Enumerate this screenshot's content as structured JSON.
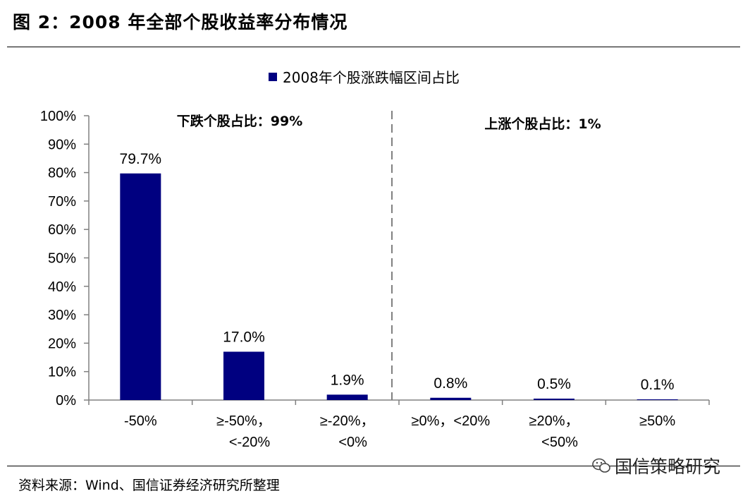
{
  "figure": {
    "title": "图 2：2008 年全部个股收益率分布情况",
    "source": "资料来源：Wind、国信证券经济研究所整理",
    "brand": "国信策略研究",
    "brand_icon": "wechat-icon"
  },
  "chart_data": {
    "type": "bar",
    "categories": [
      [
        "-50%"
      ],
      [
        "≥-50%，",
        "<-20%"
      ],
      [
        "≥-20%，",
        "<0%"
      ],
      [
        "≥0%，<20%"
      ],
      [
        "≥20%，",
        "<50%"
      ],
      [
        "≥50%"
      ]
    ],
    "series": [
      {
        "name": "2008年个股涨跌幅区间占比",
        "values": [
          79.7,
          17.0,
          1.9,
          0.8,
          0.5,
          0.1
        ],
        "color": "#000080"
      }
    ],
    "data_labels": [
      "79.7%",
      "17.0%",
      "1.9%",
      "0.8%",
      "0.5%",
      "0.1%"
    ],
    "yticks": [
      "0%",
      "10%",
      "20%",
      "30%",
      "40%",
      "50%",
      "60%",
      "70%",
      "80%",
      "90%",
      "100%"
    ],
    "ylim": [
      0,
      100
    ],
    "legend_position": "top-center",
    "grid": false,
    "annotations": [
      {
        "text": "下跌个股占比：99%",
        "side": "left"
      },
      {
        "text": "上涨个股占比：1%",
        "side": "right"
      }
    ],
    "divider": {
      "between_category": 3,
      "style": "dashed",
      "color": "#808080"
    }
  }
}
